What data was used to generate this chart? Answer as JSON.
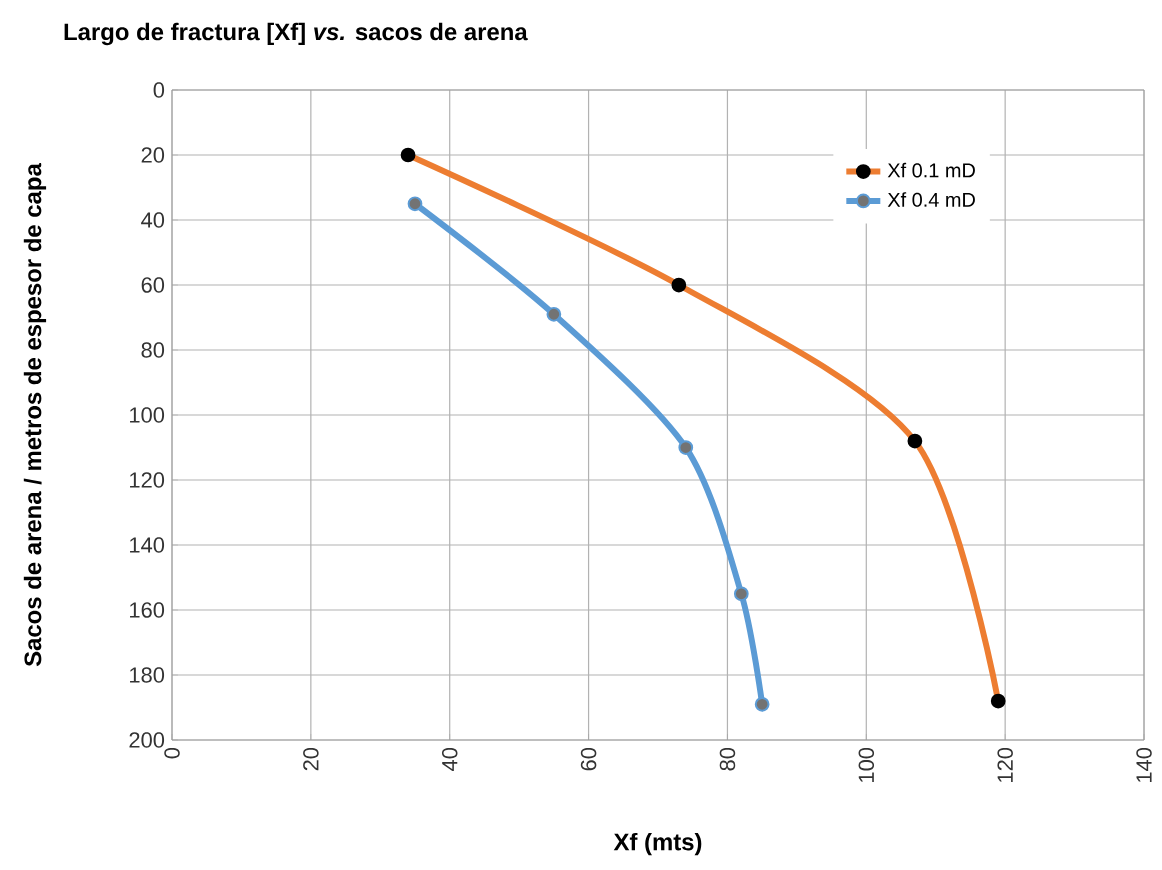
{
  "chart_data": {
    "type": "line",
    "title": "Largo de fractura [Xf] *vs.* sacos de arena",
    "xlabel": "Xf (mts)",
    "ylabel": "Sacos de arena / metros de espesor de capa",
    "xlim": [
      0,
      140
    ],
    "xticks": [
      0,
      20,
      40,
      60,
      80,
      100,
      120,
      140
    ],
    "ylim": [
      200,
      0
    ],
    "yticks": [
      0,
      20,
      40,
      60,
      80,
      100,
      120,
      140,
      160,
      180,
      200
    ],
    "grid": true,
    "legend": "top right",
    "marker": "circle",
    "series": [
      {
        "name": "Xf 0.1 mD",
        "color": "#ed7d31",
        "x": [
          34,
          73,
          107,
          119
        ],
        "values": [
          20,
          60,
          108,
          188
        ]
      },
      {
        "name": "Xf 0.4 mD",
        "color": "#5b9bd5",
        "x": [
          35,
          55,
          74,
          82,
          85
        ],
        "values": [
          35,
          69,
          110,
          155,
          189
        ]
      }
    ]
  }
}
